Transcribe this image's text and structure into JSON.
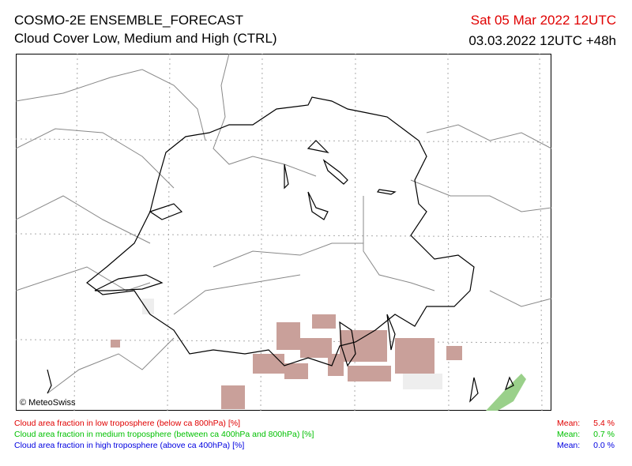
{
  "header": {
    "title": "COSMO-2E ENSEMBLE_FORECAST",
    "subtitle": "Cloud Cover Low, Medium and High (CTRL)",
    "valid_time": "Sat 05 Mar 2022 12UTC",
    "run": "03.03.2022 12UTC +48h"
  },
  "map": {
    "credit": "© MeteoSwiss"
  },
  "legend": {
    "rows": [
      {
        "label": "Cloud area fraction in low troposphere (below ca 800hPa) [%]",
        "mean_label": "Mean:",
        "mean": "5.4 %",
        "color": "#e00000"
      },
      {
        "label": "Cloud area fraction in medium troposphere (between ca 400hPa and 800hPa) [%]",
        "mean_label": "Mean:",
        "mean": "0.7 %",
        "color": "#00c000"
      },
      {
        "label": "Cloud area fraction in high troposphere (above ca 400hPa) [%]",
        "mean_label": "Mean:",
        "mean": "0.0 %",
        "color": "#0000e0"
      }
    ]
  }
}
